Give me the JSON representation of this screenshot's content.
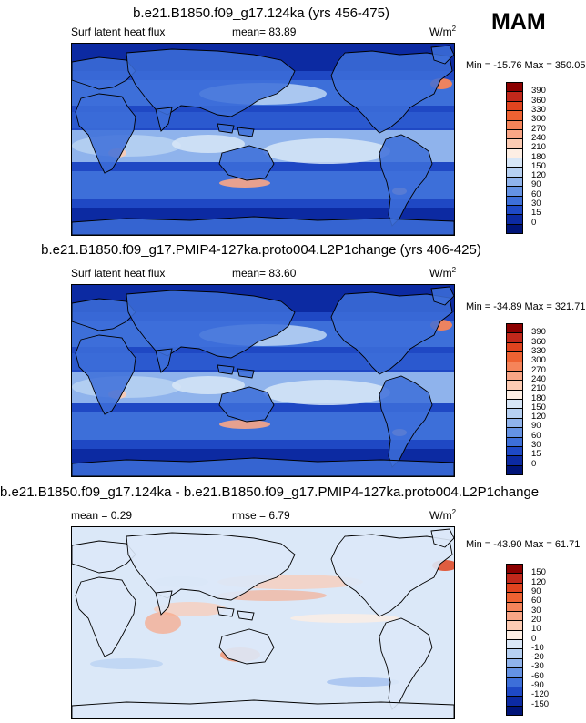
{
  "season": "MAM",
  "panels": [
    {
      "title": "b.e21.B1850.f09_g17.124ka (yrs 456-475)",
      "left_label": "Surf latent heat flux",
      "center_label": "mean=  83.89",
      "units_base": "W/m",
      "units_exp": "2",
      "minmax": "Min = -15.76 Max = 350.05",
      "colorbar_labels": [
        "390",
        "360",
        "330",
        "300",
        "270",
        "240",
        "210",
        "180",
        "150",
        "120",
        "90",
        "60",
        "30",
        "15",
        "0"
      ],
      "colorbar_colors": [
        "#8b0000",
        "#c1281b",
        "#e0441f",
        "#ee6232",
        "#f5845a",
        "#f9a686",
        "#fccbb3",
        "#fdeee4",
        "#d7e6f7",
        "#b6d0f2",
        "#8fb3ec",
        "#6492e4",
        "#3d6fd9",
        "#1e49c6",
        "#0c2aa2",
        "#001478"
      ],
      "map_palette": "flux"
    },
    {
      "title": "b.e21.B1850.f09_g17.PMIP4-127ka.proto004.L2P1change (yrs 406-425)",
      "left_label": "Surf latent heat flux",
      "center_label": "mean=  83.60",
      "units_base": "W/m",
      "units_exp": "2",
      "minmax": "Min = -34.89 Max = 321.71",
      "colorbar_labels": [
        "390",
        "360",
        "330",
        "300",
        "270",
        "240",
        "210",
        "180",
        "150",
        "120",
        "90",
        "60",
        "30",
        "15",
        "0"
      ],
      "colorbar_colors": [
        "#8b0000",
        "#c1281b",
        "#e0441f",
        "#ee6232",
        "#f5845a",
        "#f9a686",
        "#fccbb3",
        "#fdeee4",
        "#d7e6f7",
        "#b6d0f2",
        "#8fb3ec",
        "#6492e4",
        "#3d6fd9",
        "#1e49c6",
        "#0c2aa2",
        "#001478"
      ],
      "map_palette": "flux"
    },
    {
      "title": "b.e21.B1850.f09_g17.124ka - b.e21.B1850.f09_g17.PMIP4-127ka.proto004.L2P1change",
      "left_label": "mean =   0.29",
      "center_label": "rmse =   6.79",
      "units_base": "W/m",
      "units_exp": "2",
      "minmax": "Min = -43.90 Max =  61.71",
      "colorbar_labels": [
        "150",
        "120",
        "90",
        "60",
        "30",
        "20",
        "10",
        "0",
        "-10",
        "-20",
        "-30",
        "-60",
        "-90",
        "-120",
        "-150"
      ],
      "colorbar_colors": [
        "#8b0000",
        "#c1281b",
        "#e0441f",
        "#ee6232",
        "#f5845a",
        "#f9a686",
        "#fccbb3",
        "#fdeee4",
        "#dbe8f8",
        "#b6d0f2",
        "#8fb3ec",
        "#6492e4",
        "#3d6fd9",
        "#1e49c6",
        "#0c2aa2",
        "#001478"
      ],
      "map_palette": "diff"
    }
  ]
}
